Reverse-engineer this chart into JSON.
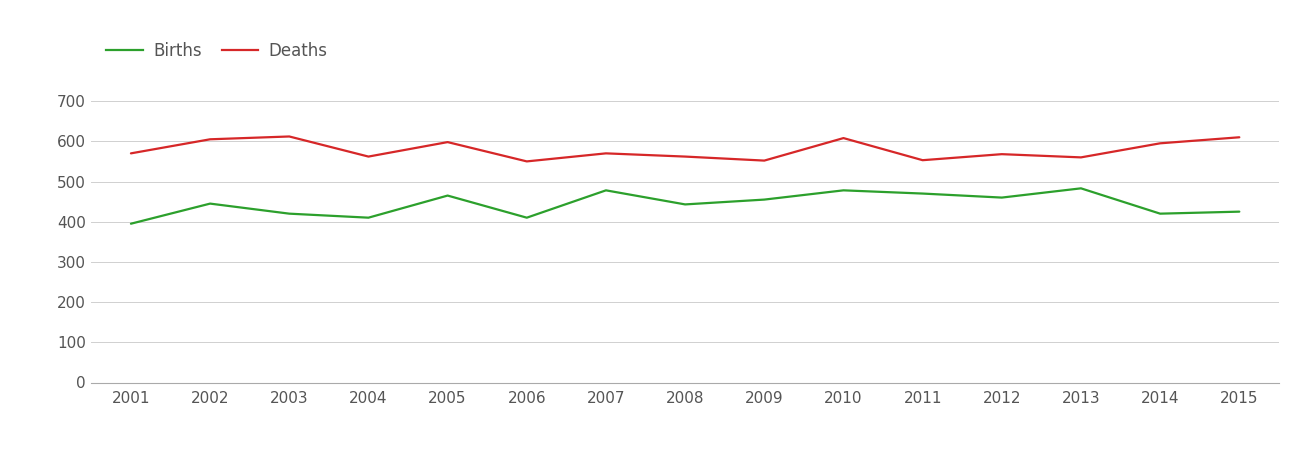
{
  "years": [
    2001,
    2002,
    2003,
    2004,
    2005,
    2006,
    2007,
    2008,
    2009,
    2010,
    2011,
    2012,
    2013,
    2014,
    2015
  ],
  "births": [
    395,
    445,
    420,
    410,
    465,
    410,
    478,
    443,
    455,
    478,
    470,
    460,
    483,
    420,
    425
  ],
  "deaths": [
    570,
    605,
    612,
    562,
    598,
    550,
    570,
    562,
    552,
    608,
    553,
    568,
    560,
    595,
    610
  ],
  "births_color": "#2ca02c",
  "deaths_color": "#d62728",
  "line_width": 1.6,
  "ylim": [
    0,
    750
  ],
  "yticks": [
    0,
    100,
    200,
    300,
    400,
    500,
    600,
    700
  ],
  "xlim": [
    2000.5,
    2015.5
  ],
  "grid_color": "#d0d0d0",
  "grid_linewidth": 0.7,
  "background_color": "#ffffff",
  "legend_labels": [
    "Births",
    "Deaths"
  ],
  "legend_fontsize": 12,
  "tick_fontsize": 11,
  "tick_color": "#555555"
}
